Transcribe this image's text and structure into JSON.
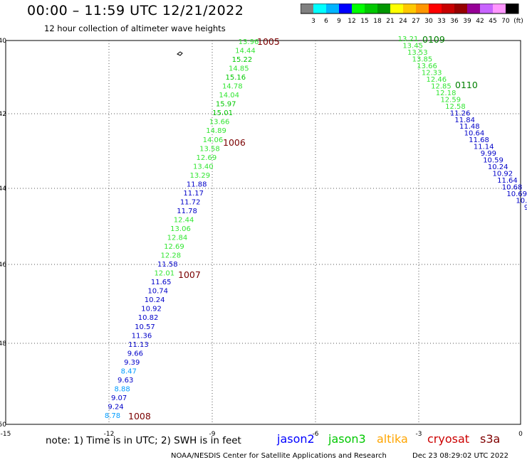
{
  "header": {
    "title": "00:00 – 11:59 UTC 12/21/2022",
    "subtitle": "12 hour collection of altimeter wave heights"
  },
  "colorbar": {
    "swatches": [
      "#808080",
      "#00ffff",
      "#00b4ff",
      "#0000ff",
      "#00ff00",
      "#00c800",
      "#009600",
      "#ffff00",
      "#ffc800",
      "#ff9600",
      "#ff0000",
      "#c80000",
      "#960000",
      "#960096",
      "#c864ff",
      "#ff96ff",
      "#000000"
    ],
    "labels": [
      "3",
      "6",
      "9",
      "12",
      "15",
      "18",
      "21",
      "24",
      "27",
      "30",
      "33",
      "36",
      "39",
      "42",
      "45",
      "70",
      "(ft)"
    ]
  },
  "map": {
    "lon_ticks": [
      "-15",
      "-12",
      "-9",
      "-6",
      "-3",
      "0"
    ],
    "lat_ticks": [
      "-40",
      "-42",
      "-44",
      "-46",
      "-48",
      "-50"
    ],
    "colors": {
      "jason2": "#0000ff",
      "jason3": "#00c800",
      "altika": "#ffa500",
      "cryosat": "#cc0000",
      "s3a": "#800000",
      "c9": "#009cff",
      "c12": "#0000c8",
      "c15": "#32e632",
      "c18": "#00c800",
      "c21": "#009600",
      "time": "#7a0000",
      "time_alt": "#008000"
    },
    "time_labels": [
      {
        "text": "1005",
        "color": "time"
      },
      {
        "text": "1006",
        "color": "time"
      },
      {
        "text": "1007",
        "color": "time"
      },
      {
        "text": "1008",
        "color": "time"
      },
      {
        "text": "0109",
        "color": "time_alt"
      },
      {
        "text": "0110",
        "color": "time_alt"
      }
    ],
    "track1": [
      {
        "v": "13.96",
        "c": "c15"
      },
      {
        "v": "14.44",
        "c": "c15"
      },
      {
        "v": "15.22",
        "c": "c18"
      },
      {
        "v": "14.85",
        "c": "c15"
      },
      {
        "v": "15.16",
        "c": "c18"
      },
      {
        "v": "14.78",
        "c": "c15"
      },
      {
        "v": "14.04",
        "c": "c15"
      },
      {
        "v": "15.97",
        "c": "c18"
      },
      {
        "v": "15.01",
        "c": "c18"
      },
      {
        "v": "13.66",
        "c": "c15"
      },
      {
        "v": "14.89",
        "c": "c15"
      },
      {
        "v": "14.06",
        "c": "c15"
      },
      {
        "v": "13.58",
        "c": "c15"
      },
      {
        "v": "12.69",
        "c": "c15"
      },
      {
        "v": "13.40",
        "c": "c15"
      },
      {
        "v": "13.29",
        "c": "c15"
      },
      {
        "v": "11.88",
        "c": "c12"
      },
      {
        "v": "11.17",
        "c": "c12"
      },
      {
        "v": "11.72",
        "c": "c12"
      },
      {
        "v": "11.78",
        "c": "c12"
      },
      {
        "v": "12.44",
        "c": "c15"
      },
      {
        "v": "13.06",
        "c": "c15"
      },
      {
        "v": "12.84",
        "c": "c15"
      },
      {
        "v": "12.69",
        "c": "c15"
      },
      {
        "v": "12.28",
        "c": "c15"
      },
      {
        "v": "11.58",
        "c": "c12"
      },
      {
        "v": "12.01",
        "c": "c15"
      },
      {
        "v": "11.65",
        "c": "c12"
      },
      {
        "v": "10.74",
        "c": "c12"
      },
      {
        "v": "10.24",
        "c": "c12"
      },
      {
        "v": "10.92",
        "c": "c12"
      },
      {
        "v": "10.82",
        "c": "c12"
      },
      {
        "v": "10.57",
        "c": "c12"
      },
      {
        "v": "11.36",
        "c": "c12"
      },
      {
        "v": "11.13",
        "c": "c12"
      },
      {
        "v": "9.66",
        "c": "c12"
      },
      {
        "v": "9.39",
        "c": "c12"
      },
      {
        "v": "8.47",
        "c": "c9"
      },
      {
        "v": "9.63",
        "c": "c12"
      },
      {
        "v": "8.88",
        "c": "c9"
      },
      {
        "v": "9.07",
        "c": "c12"
      },
      {
        "v": "9.24",
        "c": "c12"
      },
      {
        "v": "8.78",
        "c": "c9"
      }
    ],
    "track2": [
      {
        "v": "13.21",
        "c": "c15"
      },
      {
        "v": "13.45",
        "c": "c15"
      },
      {
        "v": "13.53",
        "c": "c15"
      },
      {
        "v": "13.85",
        "c": "c15"
      },
      {
        "v": "13.66",
        "c": "c15"
      },
      {
        "v": "12.33",
        "c": "c15"
      },
      {
        "v": "12.46",
        "c": "c15"
      },
      {
        "v": "12.85",
        "c": "c15"
      },
      {
        "v": "12.18",
        "c": "c15"
      },
      {
        "v": "12.59",
        "c": "c15"
      },
      {
        "v": "12.58",
        "c": "c15"
      },
      {
        "v": "11.26",
        "c": "c12"
      },
      {
        "v": "11.84",
        "c": "c12"
      },
      {
        "v": "11.48",
        "c": "c12"
      },
      {
        "v": "10.64",
        "c": "c12"
      },
      {
        "v": "11.68",
        "c": "c12"
      },
      {
        "v": "11.14",
        "c": "c12"
      },
      {
        "v": "9.99",
        "c": "c12"
      },
      {
        "v": "10.59",
        "c": "c12"
      },
      {
        "v": "10.24",
        "c": "c12"
      },
      {
        "v": "10.92",
        "c": "c12"
      },
      {
        "v": "11.64",
        "c": "c12"
      },
      {
        "v": "10.68",
        "c": "c12"
      },
      {
        "v": "10.69",
        "c": "c12"
      },
      {
        "v": "10.",
        "c": "c12"
      },
      {
        "v": "9",
        "c": "c12"
      }
    ]
  },
  "footer": {
    "note": "note: 1) Time is in UTC; 2) SWH is in feet",
    "satellites": [
      {
        "name": "jason2",
        "color": "jason2"
      },
      {
        "name": "jason3",
        "color": "jason3"
      },
      {
        "name": "altika",
        "color": "altika"
      },
      {
        "name": "cryosat",
        "color": "cryosat"
      },
      {
        "name": "s3a",
        "color": "s3a"
      }
    ],
    "credit": "NOAA/NESDIS Center for Satellite Applications and Research",
    "timestamp": "Dec 23 08:29:02 UTC 2022"
  }
}
